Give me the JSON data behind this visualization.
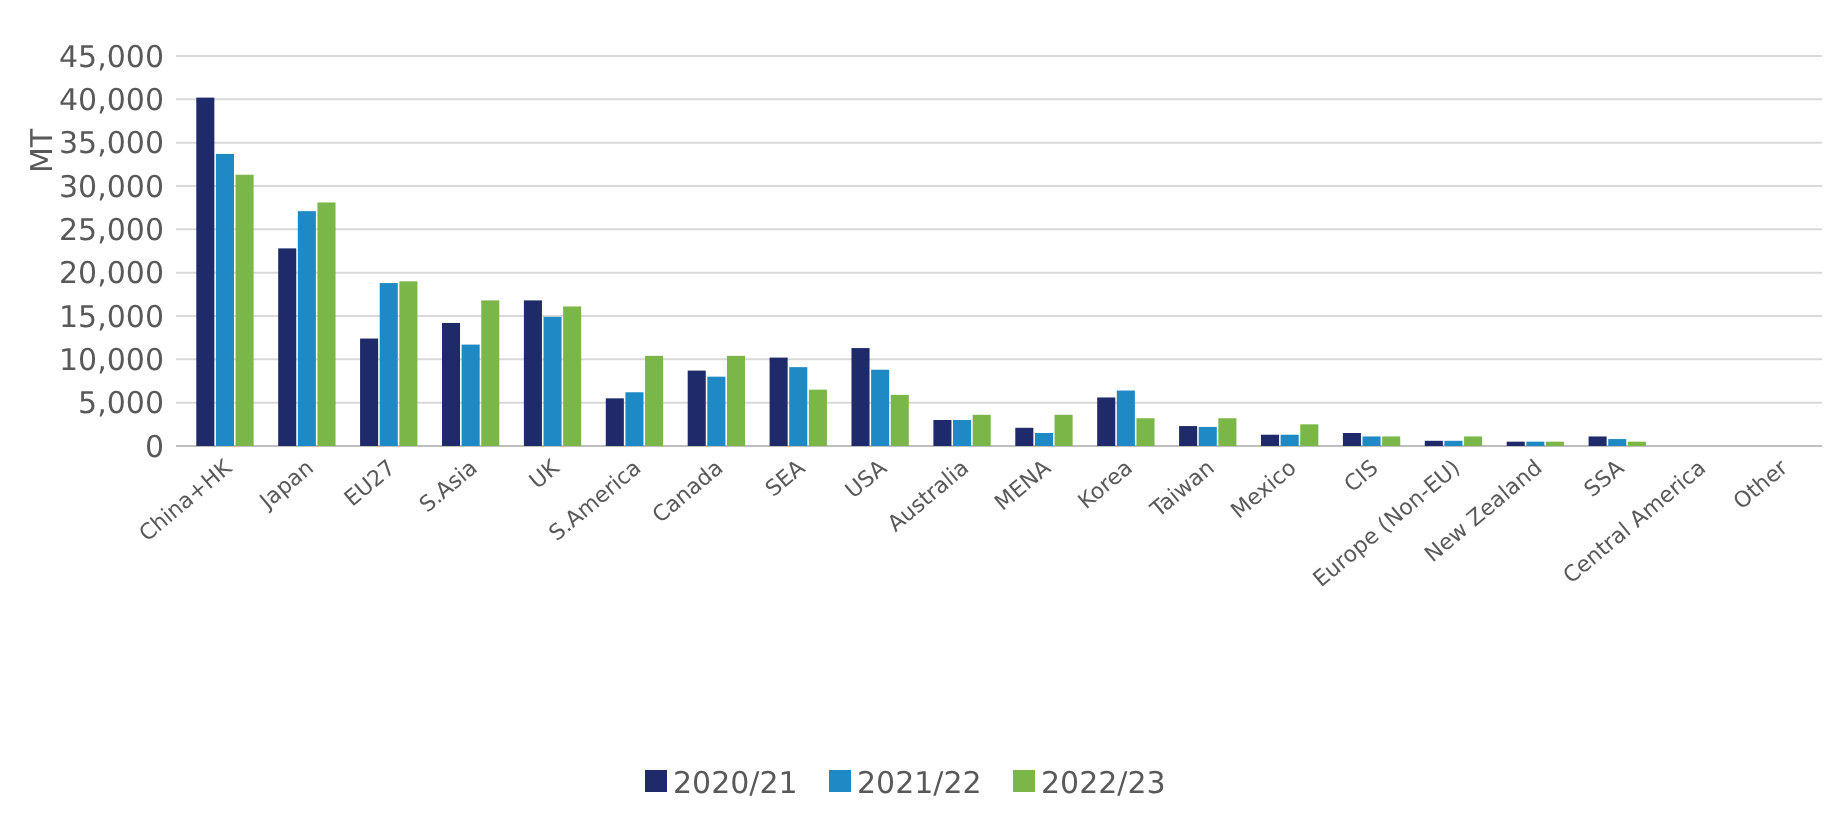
{
  "chart_data": {
    "type": "bar",
    "ylabel": "MT",
    "categories": [
      "China+HK",
      "Japan",
      "EU27",
      "S.Asia",
      "UK",
      "S.America",
      "Canada",
      "SEA",
      "USA",
      "Australia",
      "MENA",
      "Korea",
      "Taiwan",
      "Mexico",
      "CIS",
      "Europe (Non-EU)",
      "New Zealand",
      "SSA",
      "Central America",
      "Other"
    ],
    "series": [
      {
        "name": "2020/21",
        "color": "#1f2a6b",
        "values": [
          40200,
          22800,
          12400,
          14200,
          16800,
          5500,
          8700,
          10200,
          11300,
          3000,
          2100,
          5600,
          2300,
          1300,
          1500,
          600,
          500,
          1100,
          null,
          null
        ]
      },
      {
        "name": "2021/22",
        "color": "#1d8ac6",
        "values": [
          33700,
          27100,
          18800,
          11700,
          14900,
          6200,
          8000,
          9100,
          8800,
          3000,
          1500,
          6400,
          2200,
          1300,
          1100,
          600,
          500,
          800,
          null,
          null
        ]
      },
      {
        "name": "2022/23",
        "color": "#7ab648",
        "values": [
          31300,
          28100,
          19000,
          16800,
          16100,
          10400,
          10400,
          6500,
          5900,
          3600,
          3600,
          3200,
          3200,
          2500,
          1100,
          1100,
          500,
          500,
          null,
          null
        ]
      }
    ],
    "ylim": [
      0,
      45000
    ],
    "yticks": [
      {
        "value": 0,
        "label": "0"
      },
      {
        "value": 5000,
        "label": "5,000"
      },
      {
        "value": 10000,
        "label": "10,000"
      },
      {
        "value": 15000,
        "label": "15,000"
      },
      {
        "value": 20000,
        "label": "20,000"
      },
      {
        "value": 25000,
        "label": "25,000"
      },
      {
        "value": 30000,
        "label": "30,000"
      },
      {
        "value": 35000,
        "label": "35,000"
      },
      {
        "value": 40000,
        "label": "40,000"
      },
      {
        "value": 45000,
        "label": "45,000"
      }
    ],
    "grid": "y",
    "legend": "bottom"
  }
}
